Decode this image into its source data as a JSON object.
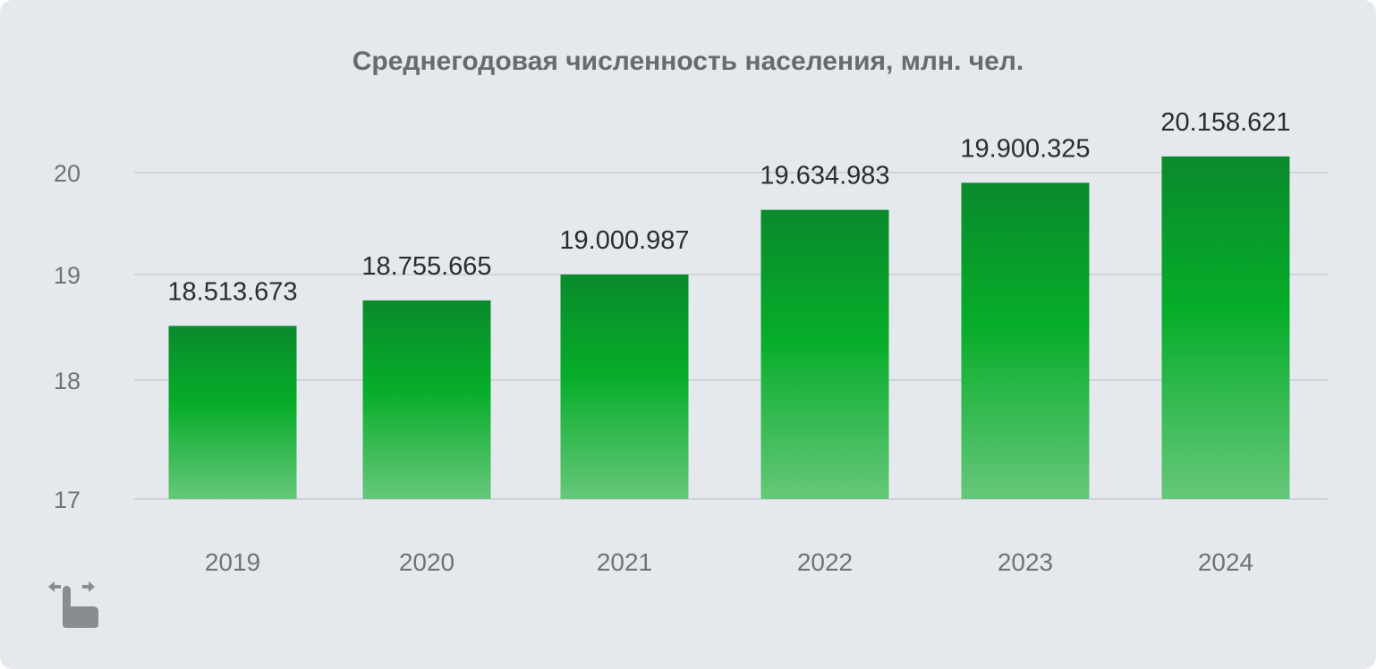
{
  "chart_data": {
    "type": "bar",
    "title": "Среднегодовая численность населения, млн. чел.",
    "categories": [
      "2019",
      "2020",
      "2021",
      "2022",
      "2023",
      "2024"
    ],
    "values": [
      18.513673,
      18.755665,
      19.000987,
      19.634983,
      19.900325,
      20.158621
    ],
    "data_labels": [
      "18.513.673",
      "18.755.665",
      "19.000.987",
      "19.634.983",
      "19.900.325",
      "20.158.621"
    ],
    "y_ticks": [
      "17",
      "18",
      "19",
      "20"
    ],
    "y_axis_break": true,
    "grid": true,
    "legend": "none",
    "colors": {
      "bar_top": "#0a8a2c",
      "bar_mid": "#06ad2a",
      "bar_bottom": "#66c77a",
      "background": "#e5e9ed"
    }
  },
  "icons": {
    "swipe": "swipe-horizontal-icon"
  }
}
